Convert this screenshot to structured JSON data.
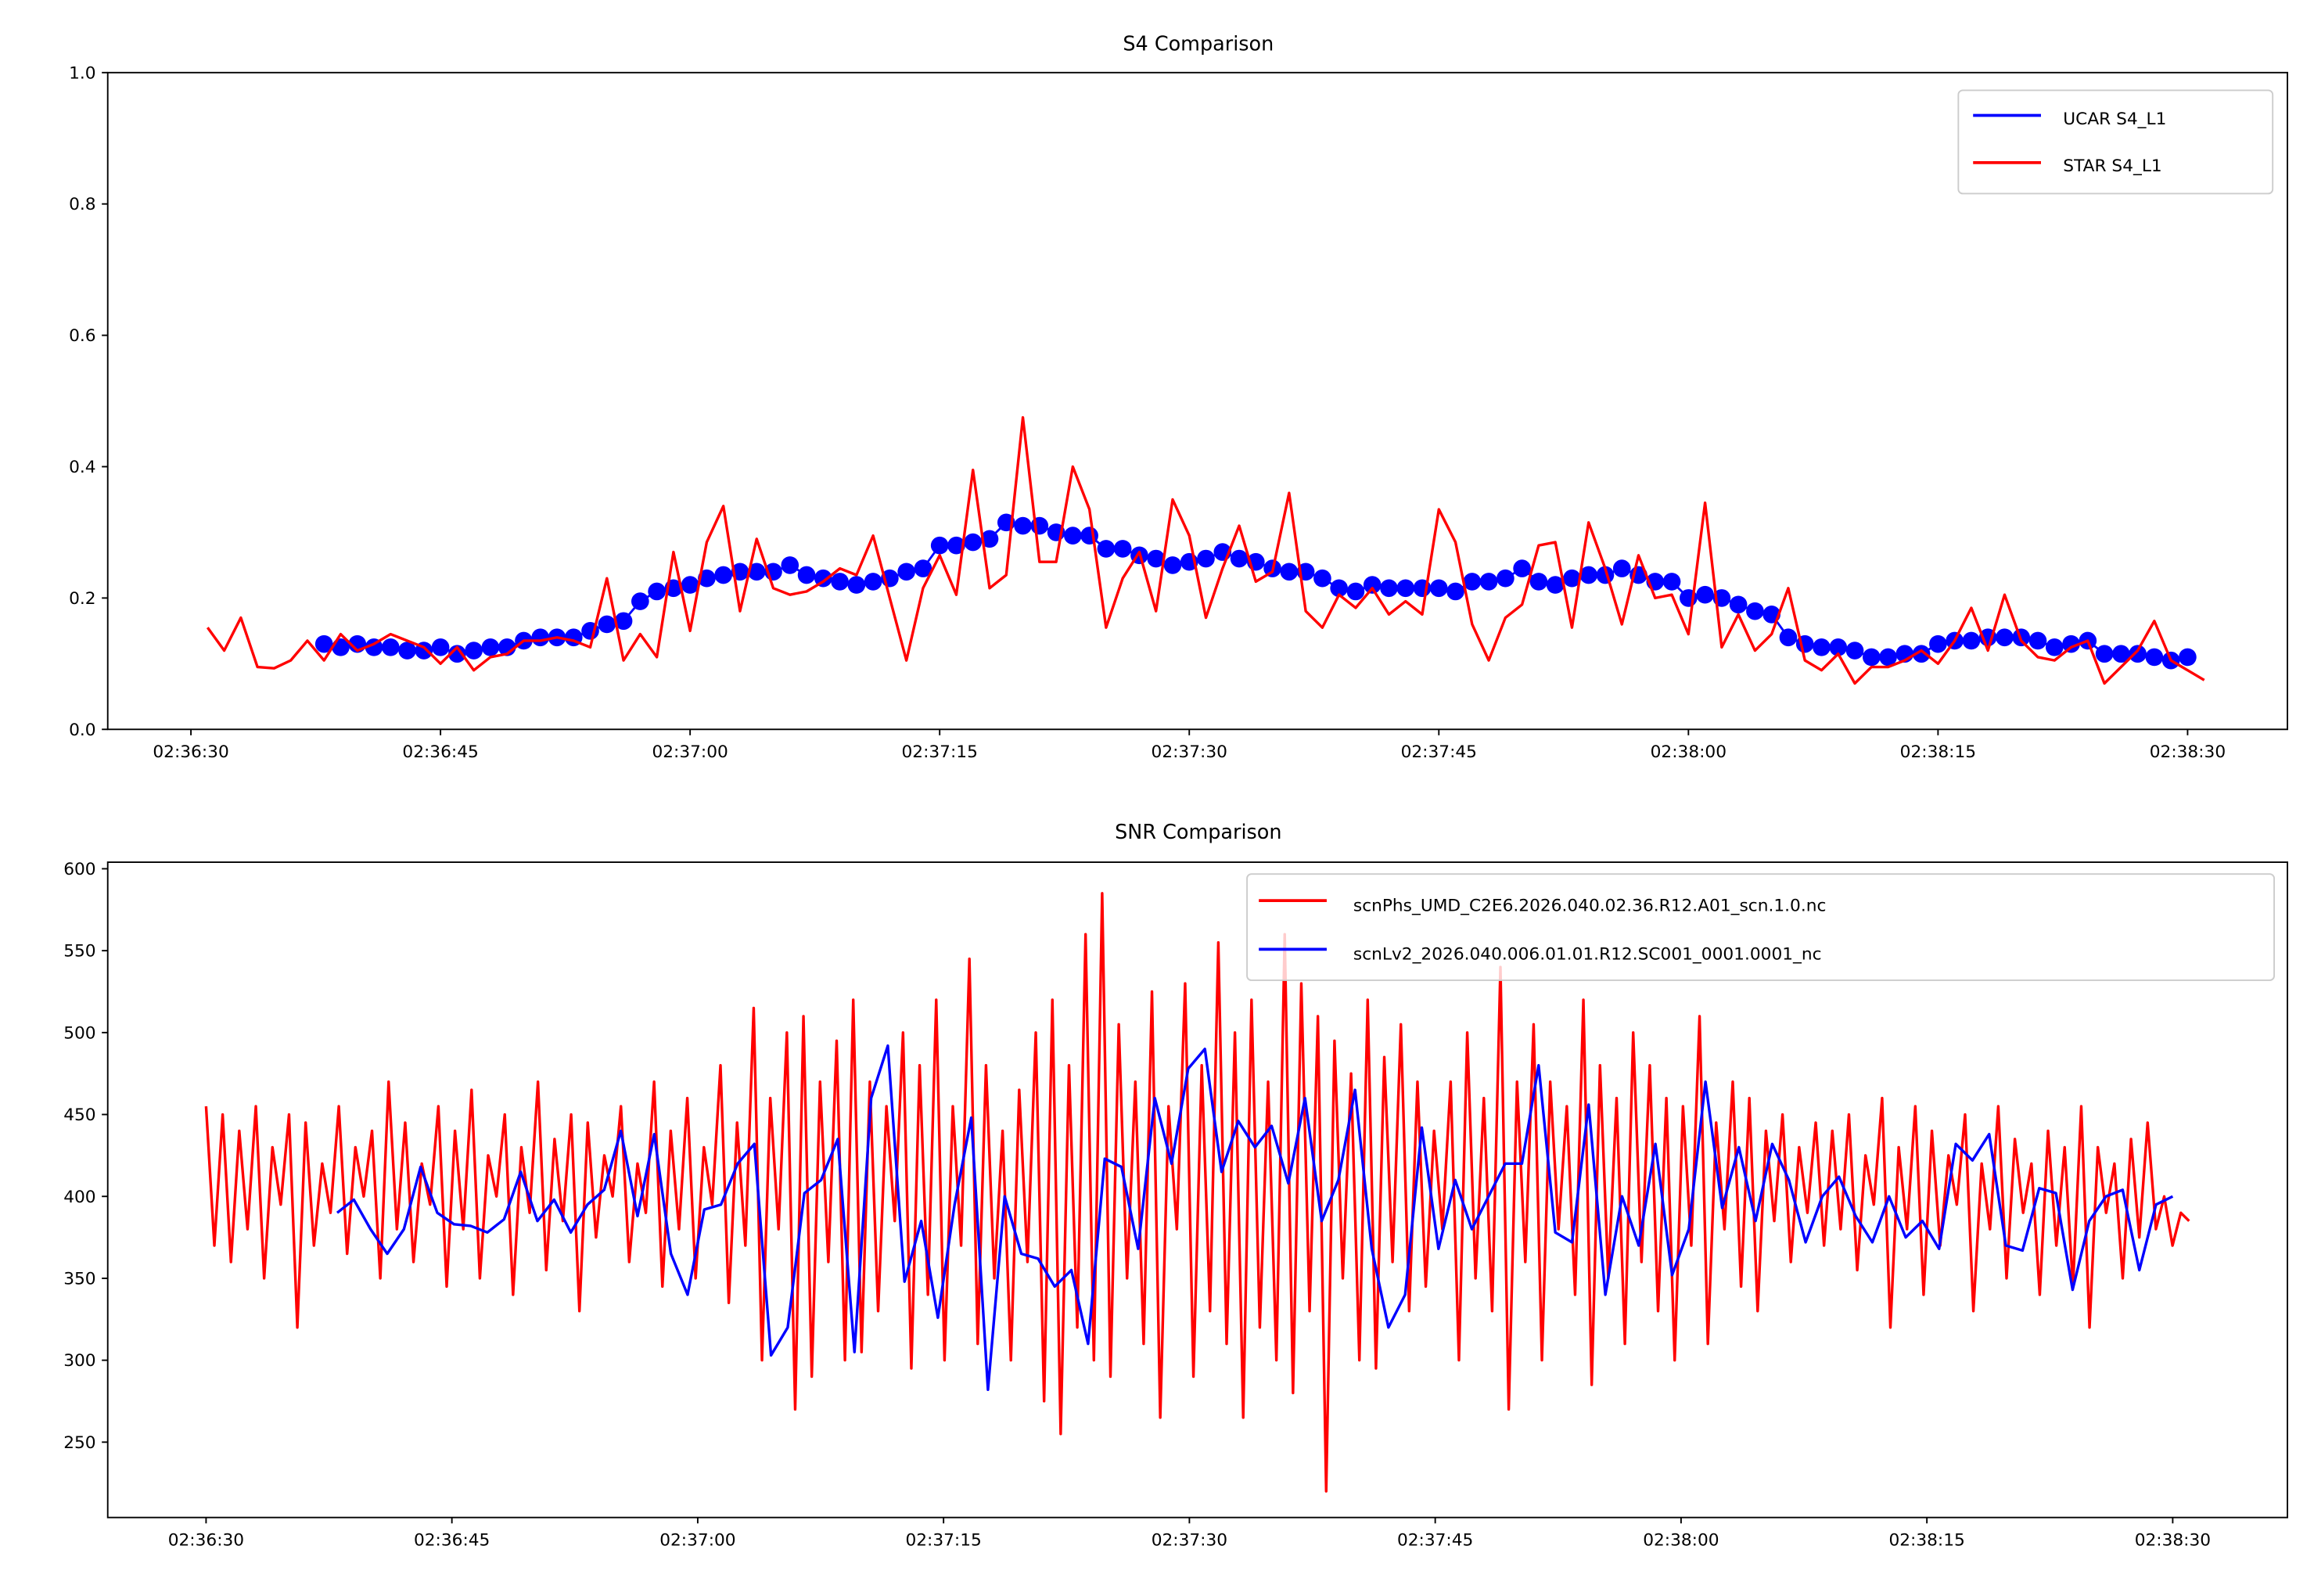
{
  "chart_data": [
    {
      "type": "line",
      "title": "S4 Comparison",
      "xlabel": "",
      "ylabel": "",
      "x_unit": "seconds after 02:36:30",
      "xlim": [
        -5,
        126
      ],
      "ylim": [
        0.0,
        1.0
      ],
      "xtick_values": [
        0,
        15,
        30,
        45,
        60,
        75,
        90,
        105,
        120
      ],
      "xtick_labels": [
        "02:36:30",
        "02:36:45",
        "02:37:00",
        "02:37:15",
        "02:37:30",
        "02:37:45",
        "02:38:00",
        "02:38:15",
        "02:38:30"
      ],
      "ytick_values": [
        0.0,
        0.2,
        0.4,
        0.6,
        0.8,
        1.0
      ],
      "ytick_labels": [
        "0.0",
        "0.2",
        "0.4",
        "0.6",
        "0.8",
        "1.0"
      ],
      "legend_position": "top-right",
      "grid": false,
      "series": [
        {
          "name": "UCAR S4_L1",
          "color": "#0000ff",
          "marker": "circle",
          "x_start": 8,
          "x_step": 1,
          "values": [
            0.13,
            0.125,
            0.13,
            0.125,
            0.125,
            0.12,
            0.12,
            0.125,
            0.115,
            0.12,
            0.125,
            0.125,
            0.135,
            0.14,
            0.14,
            0.14,
            0.15,
            0.16,
            0.165,
            0.195,
            0.21,
            0.215,
            0.22,
            0.23,
            0.235,
            0.24,
            0.24,
            0.24,
            0.25,
            0.235,
            0.23,
            0.225,
            0.22,
            0.225,
            0.23,
            0.24,
            0.245,
            0.28,
            0.28,
            0.285,
            0.29,
            0.315,
            0.31,
            0.31,
            0.3,
            0.295,
            0.295,
            0.275,
            0.275,
            0.265,
            0.26,
            0.25,
            0.255,
            0.26,
            0.27,
            0.26,
            0.255,
            0.245,
            0.24,
            0.24,
            0.23,
            0.215,
            0.21,
            0.22,
            0.215,
            0.215,
            0.215,
            0.215,
            0.21,
            0.225,
            0.225,
            0.23,
            0.245,
            0.225,
            0.22,
            0.23,
            0.235,
            0.235,
            0.245,
            0.235,
            0.225,
            0.225,
            0.2,
            0.205,
            0.2,
            0.19,
            0.18,
            0.175,
            0.14,
            0.13,
            0.125,
            0.125,
            0.12,
            0.11,
            0.11,
            0.115,
            0.115,
            0.13,
            0.135,
            0.135,
            0.14,
            0.14,
            0.14,
            0.135,
            0.125,
            0.13,
            0.135,
            0.115,
            0.115,
            0.115,
            0.11,
            0.105,
            0.11
          ]
        },
        {
          "name": "STAR S4_L1",
          "color": "#ff0000",
          "marker": "none",
          "x_start": 1,
          "x_step": 1,
          "values": [
            0.155,
            0.12,
            0.17,
            0.095,
            0.093,
            0.105,
            0.135,
            0.105,
            0.145,
            0.12,
            0.13,
            0.145,
            0.135,
            0.125,
            0.1,
            0.125,
            0.09,
            0.11,
            0.115,
            0.135,
            0.135,
            0.14,
            0.135,
            0.125,
            0.23,
            0.105,
            0.145,
            0.11,
            0.27,
            0.15,
            0.285,
            0.34,
            0.18,
            0.29,
            0.215,
            0.205,
            0.21,
            0.225,
            0.245,
            0.235,
            0.295,
            0.2,
            0.105,
            0.215,
            0.265,
            0.205,
            0.395,
            0.215,
            0.235,
            0.475,
            0.255,
            0.255,
            0.4,
            0.335,
            0.155,
            0.23,
            0.27,
            0.18,
            0.35,
            0.295,
            0.17,
            0.245,
            0.31,
            0.225,
            0.24,
            0.36,
            0.18,
            0.155,
            0.205,
            0.185,
            0.215,
            0.175,
            0.195,
            0.175,
            0.335,
            0.285,
            0.16,
            0.105,
            0.17,
            0.19,
            0.28,
            0.285,
            0.155,
            0.315,
            0.245,
            0.16,
            0.265,
            0.2,
            0.205,
            0.145,
            0.345,
            0.125,
            0.175,
            0.12,
            0.145,
            0.215,
            0.105,
            0.09,
            0.115,
            0.07,
            0.095,
            0.095,
            0.105,
            0.12,
            0.1,
            0.135,
            0.185,
            0.12,
            0.205,
            0.135,
            0.11,
            0.105,
            0.125,
            0.135,
            0.07,
            0.095,
            0.12,
            0.165,
            0.105,
            0.09,
            0.075
          ]
        }
      ]
    },
    {
      "type": "line",
      "title": "SNR Comparison",
      "xlabel": "",
      "ylabel": "",
      "x_unit": "seconds after 02:36:30",
      "xlim": [
        -6,
        127
      ],
      "ylim": [
        204,
        604
      ],
      "xtick_values": [
        0,
        15,
        30,
        45,
        60,
        75,
        90,
        105,
        120
      ],
      "xtick_labels": [
        "02:36:30",
        "02:36:45",
        "02:37:00",
        "02:37:15",
        "02:37:30",
        "02:37:45",
        "02:38:00",
        "02:38:15",
        "02:38:30"
      ],
      "ytick_values": [
        250,
        300,
        350,
        400,
        450,
        500,
        550,
        600
      ],
      "ytick_labels": [
        "250",
        "300",
        "350",
        "400",
        "450",
        "500",
        "550",
        "600"
      ],
      "legend_position": "top-right",
      "grid": false,
      "series": [
        {
          "name": "scnPhs_UMD_C2E6.2026.040.02.36.R12.A01_scn.1.0.nc",
          "color": "#ff0000",
          "x_start": 0,
          "x_end": 121,
          "values": [
            455,
            370,
            450,
            360,
            440,
            380,
            455,
            350,
            430,
            395,
            450,
            320,
            445,
            370,
            420,
            390,
            455,
            365,
            430,
            400,
            440,
            350,
            470,
            380,
            445,
            360,
            420,
            395,
            455,
            345,
            440,
            380,
            465,
            350,
            425,
            400,
            450,
            340,
            430,
            390,
            470,
            355,
            435,
            385,
            450,
            330,
            445,
            375,
            425,
            400,
            455,
            360,
            420,
            390,
            470,
            345,
            440,
            380,
            460,
            350,
            430,
            395,
            480,
            335,
            445,
            370,
            515,
            300,
            460,
            380,
            500,
            270,
            510,
            290,
            470,
            360,
            495,
            300,
            520,
            305,
            470,
            330,
            455,
            385,
            500,
            295,
            480,
            340,
            520,
            300,
            455,
            370,
            545,
            310,
            480,
            350,
            440,
            300,
            465,
            360,
            500,
            275,
            520,
            255,
            480,
            320,
            560,
            300,
            585,
            290,
            505,
            350,
            470,
            310,
            525,
            265,
            455,
            380,
            530,
            290,
            480,
            330,
            555,
            310,
            500,
            265,
            520,
            320,
            470,
            300,
            560,
            280,
            530,
            330,
            510,
            220,
            495,
            350,
            475,
            300,
            520,
            295,
            485,
            360,
            505,
            330,
            470,
            345,
            440,
            380,
            470,
            300,
            500,
            350,
            460,
            330,
            540,
            270,
            470,
            360,
            505,
            300,
            470,
            380,
            455,
            340,
            520,
            285,
            480,
            350,
            460,
            310,
            500,
            360,
            480,
            330,
            460,
            300,
            455,
            370,
            510,
            310,
            445,
            380,
            470,
            345,
            460,
            330,
            440,
            385,
            450,
            360,
            430,
            390,
            445,
            370,
            440,
            380,
            450,
            355,
            425,
            395,
            460,
            320,
            430,
            380,
            455,
            340,
            440,
            370,
            425,
            395,
            450,
            330,
            420,
            380,
            455,
            350,
            435,
            390,
            420,
            340,
            440,
            370,
            430,
            345,
            455,
            320,
            430,
            390,
            420,
            350,
            435,
            375,
            445,
            380,
            400,
            370,
            390,
            385
          ]
        },
        {
          "name": "scnLv2_2026.040.006.01.01.R12.SC001_0001.0001_nc",
          "color": "#0000ff",
          "x_start": 8,
          "x_end": 120,
          "values": [
            390,
            398,
            380,
            365,
            380,
            418,
            390,
            383,
            382,
            378,
            386,
            415,
            385,
            398,
            378,
            395,
            404,
            440,
            388,
            438,
            365,
            340,
            392,
            395,
            420,
            432,
            303,
            320,
            402,
            410,
            435,
            305,
            460,
            492,
            348,
            385,
            326,
            395,
            448,
            282,
            400,
            365,
            362,
            345,
            355,
            310,
            423,
            418,
            368,
            460,
            420,
            478,
            490,
            415,
            446,
            430,
            443,
            408,
            460,
            385,
            410,
            465,
            368,
            320,
            340,
            442,
            368,
            410,
            380,
            400,
            420,
            420,
            480,
            378,
            372,
            456,
            340,
            400,
            370,
            432,
            352,
            380,
            470,
            393,
            430,
            385,
            432,
            410,
            372,
            400,
            412,
            388,
            372,
            400,
            375,
            385,
            368,
            432,
            422,
            438,
            370,
            367,
            405,
            402,
            343,
            385,
            400,
            404,
            355,
            395,
            400
          ]
        }
      ]
    }
  ]
}
